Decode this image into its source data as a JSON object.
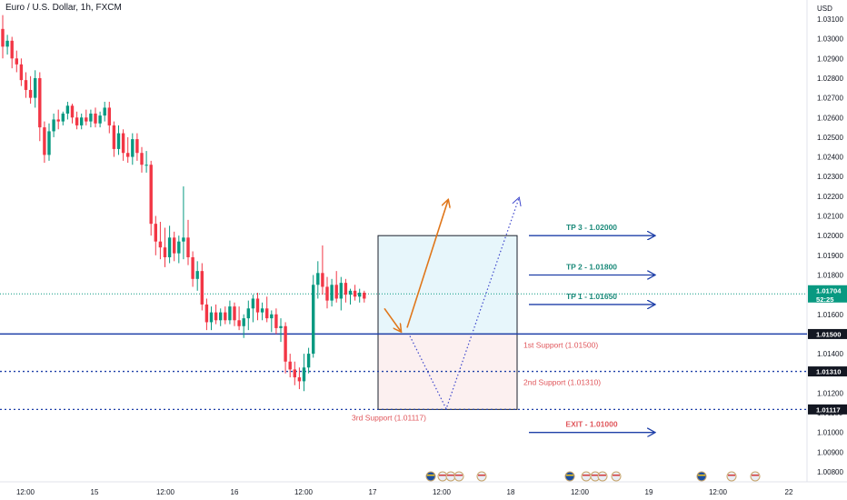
{
  "header": {
    "symbol_title": "Euro / U.S. Dollar, 1h, FXCM"
  },
  "currency_label": "USD",
  "colors": {
    "up": "#089981",
    "down": "#f23645",
    "level_line": "#1e3fa8",
    "arrow_solid": "#e0761a",
    "arrow_dotted": "#3f48cc",
    "tp_text": "#1b8a7a",
    "support_text": "#e0565b",
    "exit_text": "#e0565b",
    "price_tag": "#089981",
    "level_tag": "#131722",
    "box_top_fill": "#e7f6fb",
    "box_bottom_fill": "#fcf0f0"
  },
  "chart_data": {
    "type": "candlestick",
    "title": "Euro / U.S. Dollar, 1h, FXCM",
    "y_axis_unit": "USD",
    "ylim": [
      1.0078,
      1.0318
    ],
    "y_ticks": [
      "1.03100",
      "1.03000",
      "1.02900",
      "1.02800",
      "1.02700",
      "1.02600",
      "1.02500",
      "1.02400",
      "1.02300",
      "1.02200",
      "1.02100",
      "1.02000",
      "1.01900",
      "1.01800",
      "1.01700",
      "1.01600",
      "1.01500",
      "1.01400",
      "1.01300",
      "1.01200",
      "1.01100",
      "1.01000",
      "1.00900",
      "1.00800"
    ],
    "x_ticks": [
      "12:00",
      "15",
      "12:00",
      "16",
      "12:00",
      "17",
      "12:00",
      "18",
      "12:00",
      "19",
      "12:00",
      "22"
    ],
    "candles": [
      {
        "o": 1.0305,
        "h": 1.0312,
        "l": 1.029,
        "c": 1.0296
      },
      {
        "o": 1.0296,
        "h": 1.0302,
        "l": 1.0292,
        "c": 1.0299
      },
      {
        "o": 1.0299,
        "h": 1.0301,
        "l": 1.0285,
        "c": 1.029
      },
      {
        "o": 1.029,
        "h": 1.0294,
        "l": 1.0283,
        "c": 1.0287
      },
      {
        "o": 1.0287,
        "h": 1.029,
        "l": 1.0276,
        "c": 1.0279
      },
      {
        "o": 1.0279,
        "h": 1.0283,
        "l": 1.027,
        "c": 1.0274
      },
      {
        "o": 1.0274,
        "h": 1.0281,
        "l": 1.0267,
        "c": 1.027
      },
      {
        "o": 1.027,
        "h": 1.0284,
        "l": 1.0265,
        "c": 1.028
      },
      {
        "o": 1.028,
        "h": 1.0283,
        "l": 1.0248,
        "c": 1.0255
      },
      {
        "o": 1.0255,
        "h": 1.0258,
        "l": 1.0237,
        "c": 1.0241
      },
      {
        "o": 1.0241,
        "h": 1.0257,
        "l": 1.0238,
        "c": 1.0253
      },
      {
        "o": 1.0253,
        "h": 1.0262,
        "l": 1.025,
        "c": 1.0259
      },
      {
        "o": 1.0259,
        "h": 1.0264,
        "l": 1.0254,
        "c": 1.0258
      },
      {
        "o": 1.0258,
        "h": 1.0263,
        "l": 1.0256,
        "c": 1.0262
      },
      {
        "o": 1.0262,
        "h": 1.0268,
        "l": 1.0259,
        "c": 1.0266
      },
      {
        "o": 1.0266,
        "h": 1.0267,
        "l": 1.0257,
        "c": 1.026
      },
      {
        "o": 1.026,
        "h": 1.0263,
        "l": 1.0254,
        "c": 1.0256
      },
      {
        "o": 1.0256,
        "h": 1.0262,
        "l": 1.0254,
        "c": 1.026
      },
      {
        "o": 1.026,
        "h": 1.0264,
        "l": 1.0256,
        "c": 1.0258
      },
      {
        "o": 1.0258,
        "h": 1.0264,
        "l": 1.0255,
        "c": 1.0262
      },
      {
        "o": 1.0262,
        "h": 1.0265,
        "l": 1.0255,
        "c": 1.0257
      },
      {
        "o": 1.0257,
        "h": 1.0263,
        "l": 1.0255,
        "c": 1.0261
      },
      {
        "o": 1.0261,
        "h": 1.0268,
        "l": 1.0258,
        "c": 1.0265
      },
      {
        "o": 1.0265,
        "h": 1.0268,
        "l": 1.0252,
        "c": 1.0256
      },
      {
        "o": 1.0256,
        "h": 1.0258,
        "l": 1.024,
        "c": 1.0244
      },
      {
        "o": 1.0244,
        "h": 1.0256,
        "l": 1.0241,
        "c": 1.0252
      },
      {
        "o": 1.0252,
        "h": 1.0254,
        "l": 1.0238,
        "c": 1.0242
      },
      {
        "o": 1.0242,
        "h": 1.025,
        "l": 1.0237,
        "c": 1.024
      },
      {
        "o": 1.024,
        "h": 1.0252,
        "l": 1.0236,
        "c": 1.0249
      },
      {
        "o": 1.0249,
        "h": 1.0252,
        "l": 1.0238,
        "c": 1.0242
      },
      {
        "o": 1.0242,
        "h": 1.0245,
        "l": 1.0232,
        "c": 1.0236
      },
      {
        "o": 1.0236,
        "h": 1.0243,
        "l": 1.0232,
        "c": 1.0236
      },
      {
        "o": 1.0236,
        "h": 1.0238,
        "l": 1.02,
        "c": 1.0206
      },
      {
        "o": 1.0206,
        "h": 1.021,
        "l": 1.019,
        "c": 1.0197
      },
      {
        "o": 1.0197,
        "h": 1.0207,
        "l": 1.0188,
        "c": 1.0194
      },
      {
        "o": 1.0194,
        "h": 1.0204,
        "l": 1.0184,
        "c": 1.0189
      },
      {
        "o": 1.0189,
        "h": 1.0205,
        "l": 1.0186,
        "c": 1.0199
      },
      {
        "o": 1.0199,
        "h": 1.0202,
        "l": 1.0187,
        "c": 1.0191
      },
      {
        "o": 1.0191,
        "h": 1.02,
        "l": 1.0186,
        "c": 1.0197
      },
      {
        "o": 1.0197,
        "h": 1.0225,
        "l": 1.0188,
        "c": 1.0199
      },
      {
        "o": 1.0199,
        "h": 1.0208,
        "l": 1.0185,
        "c": 1.0189
      },
      {
        "o": 1.0189,
        "h": 1.0192,
        "l": 1.0174,
        "c": 1.0178
      },
      {
        "o": 1.0178,
        "h": 1.0187,
        "l": 1.0172,
        "c": 1.0182
      },
      {
        "o": 1.0182,
        "h": 1.0186,
        "l": 1.0162,
        "c": 1.0165
      },
      {
        "o": 1.0165,
        "h": 1.0168,
        "l": 1.0152,
        "c": 1.0156
      },
      {
        "o": 1.0156,
        "h": 1.0164,
        "l": 1.0152,
        "c": 1.0161
      },
      {
        "o": 1.0161,
        "h": 1.0165,
        "l": 1.0155,
        "c": 1.0157
      },
      {
        "o": 1.0157,
        "h": 1.0163,
        "l": 1.0154,
        "c": 1.0161
      },
      {
        "o": 1.0161,
        "h": 1.0164,
        "l": 1.0155,
        "c": 1.0157
      },
      {
        "o": 1.0157,
        "h": 1.0167,
        "l": 1.0155,
        "c": 1.0164
      },
      {
        "o": 1.0164,
        "h": 1.0166,
        "l": 1.0154,
        "c": 1.0157
      },
      {
        "o": 1.0157,
        "h": 1.0164,
        "l": 1.0152,
        "c": 1.0154
      },
      {
        "o": 1.0154,
        "h": 1.016,
        "l": 1.0148,
        "c": 1.0158
      },
      {
        "o": 1.0158,
        "h": 1.0167,
        "l": 1.0152,
        "c": 1.0163
      },
      {
        "o": 1.0163,
        "h": 1.017,
        "l": 1.0156,
        "c": 1.0168
      },
      {
        "o": 1.0168,
        "h": 1.0171,
        "l": 1.0157,
        "c": 1.0161
      },
      {
        "o": 1.0161,
        "h": 1.0166,
        "l": 1.0157,
        "c": 1.0163
      },
      {
        "o": 1.0163,
        "h": 1.0169,
        "l": 1.0156,
        "c": 1.0158
      },
      {
        "o": 1.0158,
        "h": 1.0162,
        "l": 1.0151,
        "c": 1.016
      },
      {
        "o": 1.016,
        "h": 1.0163,
        "l": 1.015,
        "c": 1.0153
      },
      {
        "o": 1.0153,
        "h": 1.0158,
        "l": 1.0146,
        "c": 1.0154
      },
      {
        "o": 1.0154,
        "h": 1.0156,
        "l": 1.013,
        "c": 1.0136
      },
      {
        "o": 1.0136,
        "h": 1.014,
        "l": 1.0128,
        "c": 1.0132
      },
      {
        "o": 1.0132,
        "h": 1.0136,
        "l": 1.0124,
        "c": 1.0128
      },
      {
        "o": 1.0128,
        "h": 1.0133,
        "l": 1.0122,
        "c": 1.0126
      },
      {
        "o": 1.0126,
        "h": 1.014,
        "l": 1.0121,
        "c": 1.0133
      },
      {
        "o": 1.0133,
        "h": 1.0143,
        "l": 1.013,
        "c": 1.014
      },
      {
        "o": 1.014,
        "h": 1.018,
        "l": 1.0138,
        "c": 1.0175
      },
      {
        "o": 1.0175,
        "h": 1.0187,
        "l": 1.0168,
        "c": 1.0181
      },
      {
        "o": 1.0181,
        "h": 1.0195,
        "l": 1.017,
        "c": 1.0174
      },
      {
        "o": 1.0174,
        "h": 1.0179,
        "l": 1.0163,
        "c": 1.0167
      },
      {
        "o": 1.0167,
        "h": 1.0178,
        "l": 1.0164,
        "c": 1.0175
      },
      {
        "o": 1.0175,
        "h": 1.0182,
        "l": 1.0166,
        "c": 1.0168
      },
      {
        "o": 1.0168,
        "h": 1.0179,
        "l": 1.0162,
        "c": 1.0176
      },
      {
        "o": 1.0176,
        "h": 1.0178,
        "l": 1.0166,
        "c": 1.017
      },
      {
        "o": 1.017,
        "h": 1.0173,
        "l": 1.0165,
        "c": 1.0172
      },
      {
        "o": 1.0172,
        "h": 1.0175,
        "l": 1.0167,
        "c": 1.0169
      },
      {
        "o": 1.0169,
        "h": 1.0173,
        "l": 1.0166,
        "c": 1.0171
      },
      {
        "o": 1.0171,
        "h": 1.0172,
        "l": 1.0166,
        "c": 1.0168
      }
    ],
    "current_price": {
      "value": "1.01704",
      "countdown": "52:25"
    },
    "levels": [
      {
        "price": 1.015,
        "tag": "1.01500",
        "label": "1st Support (1.01500)",
        "style": "solid"
      },
      {
        "price": 1.0131,
        "tag": "1.01310",
        "label": "2nd Support (1.01310)",
        "style": "dotted"
      },
      {
        "price": 1.01117,
        "tag": "1.01117",
        "label": "3rd Support (1.01117)",
        "style": "dotted"
      }
    ],
    "targets": [
      {
        "price": 1.02,
        "label": "TP 3 - 1.02000"
      },
      {
        "price": 1.018,
        "label": "TP 2 - 1.01800"
      },
      {
        "price": 1.0165,
        "label": "TP 1 - 1.01650"
      },
      {
        "price": 1.01,
        "label": "EXIT - 1.01000"
      }
    ],
    "trade_box": {
      "top": 1.02,
      "entry": 1.015,
      "bottom": 1.01117
    },
    "solid_path": [
      [
        1.0163,
        1.015
      ],
      [
        1.015,
        1.0218
      ]
    ],
    "dotted_path": [
      [
        1.0149,
        1.0112
      ],
      [
        1.0112,
        1.0219
      ]
    ]
  }
}
